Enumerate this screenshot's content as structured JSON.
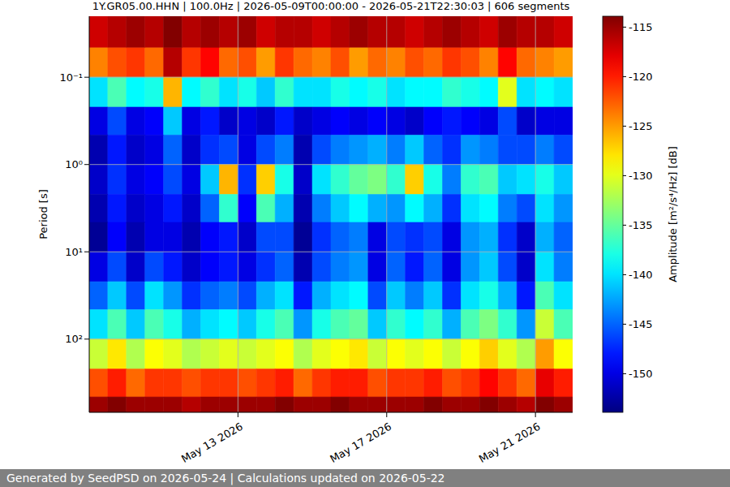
{
  "chart_data": {
    "type": "heatmap",
    "title": "1Y.GR05.00.HHN | 100.0Hz | 2026-05-09T00:00:00 - 2026-05-21T22:30:03 | 606 segments",
    "y_label": "Period [s]",
    "footer": "Generated by SeedPSD on 2026-05-24 | Calculations updated on 2026-05-22",
    "log": "y",
    "grid": true,
    "xlim": [
      "2026-05-09T00:00",
      "2026-05-22T00:00"
    ],
    "xticks": [
      {
        "value": "2026-05-13T00:00",
        "label": "May 13 2026"
      },
      {
        "value": "2026-05-17T00:00",
        "label": "May 17 2026"
      },
      {
        "value": "2026-05-21T00:00",
        "label": "May 21 2026"
      }
    ],
    "ylim": [
      0.02,
      690
    ],
    "yticks": [
      {
        "value": 0.1,
        "label": "10⁻¹"
      },
      {
        "value": 1,
        "label": "10⁰"
      },
      {
        "value": 10,
        "label": "10¹"
      },
      {
        "value": 100,
        "label": "10²"
      }
    ],
    "x_edges": [
      "2026-05-09T00:00",
      "2026-05-09T12:00",
      "2026-05-10T00:00",
      "2026-05-10T12:00",
      "2026-05-11T00:00",
      "2026-05-11T12:00",
      "2026-05-12T00:00",
      "2026-05-12T12:00",
      "2026-05-13T00:00",
      "2026-05-13T12:00",
      "2026-05-14T00:00",
      "2026-05-14T12:00",
      "2026-05-15T00:00",
      "2026-05-15T12:00",
      "2026-05-16T00:00",
      "2026-05-16T12:00",
      "2026-05-17T00:00",
      "2026-05-17T12:00",
      "2026-05-18T00:00",
      "2026-05-18T12:00",
      "2026-05-19T00:00",
      "2026-05-19T12:00",
      "2026-05-20T00:00",
      "2026-05-20T12:00",
      "2026-05-21T00:00",
      "2026-05-21T12:00",
      "2026-05-22T00:00"
    ],
    "y_edges": [
      0.02,
      0.046,
      0.1,
      0.22,
      0.46,
      1,
      2.2,
      4.6,
      10,
      22,
      46,
      100,
      220,
      460,
      690
    ],
    "z": [
      [
        -117,
        -116,
        -115,
        -116,
        -114,
        -116,
        -115,
        -116,
        -115,
        -117,
        -116,
        -116,
        -117,
        -116,
        -115,
        -116,
        -116,
        -117,
        -116,
        -115,
        -116,
        -117,
        -115,
        -116,
        -116,
        -117
      ],
      [
        -124,
        -122,
        -121,
        -123,
        -116,
        -121,
        -119,
        -123,
        -122,
        -125,
        -121,
        -123,
        -124,
        -122,
        -125,
        -123,
        -124,
        -122,
        -123,
        -121,
        -122,
        -124,
        -119,
        -123,
        -124,
        -125
      ],
      [
        -140,
        -136,
        -139,
        -138,
        -126,
        -139,
        -137,
        -140,
        -138,
        -141,
        -137,
        -140,
        -140,
        -138,
        -139,
        -138,
        -140,
        -139,
        -139,
        -137,
        -138,
        -139,
        -130,
        -140,
        -139,
        -140
      ],
      [
        -150,
        -146,
        -150,
        -149,
        -141,
        -150,
        -148,
        -151,
        -150,
        -151,
        -148,
        -151,
        -150,
        -149,
        -150,
        -149,
        -150,
        -151,
        -149,
        -148,
        -149,
        -150,
        -146,
        -151,
        -150,
        -150
      ],
      [
        -152,
        -148,
        -151,
        -150,
        -145,
        -151,
        -147,
        -146,
        -150,
        -146,
        -144,
        -152,
        -146,
        -144,
        -143,
        -142,
        -144,
        -141,
        -145,
        -147,
        -143,
        -144,
        -146,
        -146,
        -144,
        -146
      ],
      [
        -151,
        -147,
        -150,
        -149,
        -146,
        -150,
        -141,
        -126,
        -147,
        -127,
        -138,
        -151,
        -140,
        -137,
        -135,
        -134,
        -137,
        -127,
        -138,
        -144,
        -137,
        -136,
        -141,
        -140,
        -138,
        -141
      ],
      [
        -152,
        -148,
        -151,
        -150,
        -148,
        -151,
        -145,
        -137,
        -149,
        -136,
        -142,
        -152,
        -144,
        -141,
        -139,
        -142,
        -143,
        -139,
        -142,
        -147,
        -140,
        -139,
        -144,
        -146,
        -140,
        -143
      ],
      [
        -153,
        -149,
        -152,
        -150,
        -150,
        -152,
        -149,
        -148,
        -151,
        -146,
        -146,
        -153,
        -147,
        -145,
        -144,
        -150,
        -146,
        -147,
        -146,
        -150,
        -143,
        -142,
        -147,
        -151,
        -142,
        -145
      ],
      [
        -150,
        -146,
        -151,
        -146,
        -148,
        -151,
        -149,
        -148,
        -150,
        -147,
        -145,
        -152,
        -146,
        -144,
        -143,
        -150,
        -145,
        -148,
        -145,
        -150,
        -143,
        -141,
        -146,
        -151,
        -140,
        -144
      ],
      [
        -145,
        -141,
        -146,
        -140,
        -143,
        -147,
        -145,
        -144,
        -146,
        -142,
        -140,
        -148,
        -142,
        -140,
        -139,
        -146,
        -141,
        -144,
        -141,
        -147,
        -140,
        -138,
        -142,
        -148,
        -136,
        -140
      ],
      [
        -140,
        -136,
        -141,
        -136,
        -138,
        -142,
        -140,
        -139,
        -141,
        -138,
        -136,
        -143,
        -138,
        -136,
        -135,
        -141,
        -137,
        -139,
        -137,
        -142,
        -136,
        -134,
        -137,
        -143,
        -131,
        -136
      ],
      [
        -131,
        -128,
        -132,
        -129,
        -130,
        -132,
        -131,
        -130,
        -131,
        -130,
        -129,
        -132,
        -130,
        -129,
        -128,
        -131,
        -129,
        -130,
        -129,
        -131,
        -129,
        -127,
        -130,
        -132,
        -125,
        -129
      ],
      [
        -122,
        -120,
        -123,
        -121,
        -121,
        -122,
        -121,
        -121,
        -122,
        -121,
        -120,
        -123,
        -121,
        -120,
        -120,
        -122,
        -121,
        -121,
        -120,
        -122,
        -121,
        -119,
        -121,
        -123,
        -118,
        -120
      ],
      [
        -115,
        -114,
        -115,
        -115,
        -115,
        -116,
        -115,
        -115,
        -115,
        -115,
        -114,
        -115,
        -115,
        -114,
        -115,
        -115,
        -115,
        -115,
        -114,
        -115,
        -115,
        -114,
        -115,
        -116,
        -114,
        -115
      ]
    ],
    "colorbar": {
      "label": "Amplitude [m²/s⁴/Hz] [dB]",
      "range": [
        -153.9,
        -113.9
      ],
      "ticks": [
        -150,
        -145,
        -140,
        -135,
        -130,
        -125,
        -120,
        -115
      ]
    }
  }
}
